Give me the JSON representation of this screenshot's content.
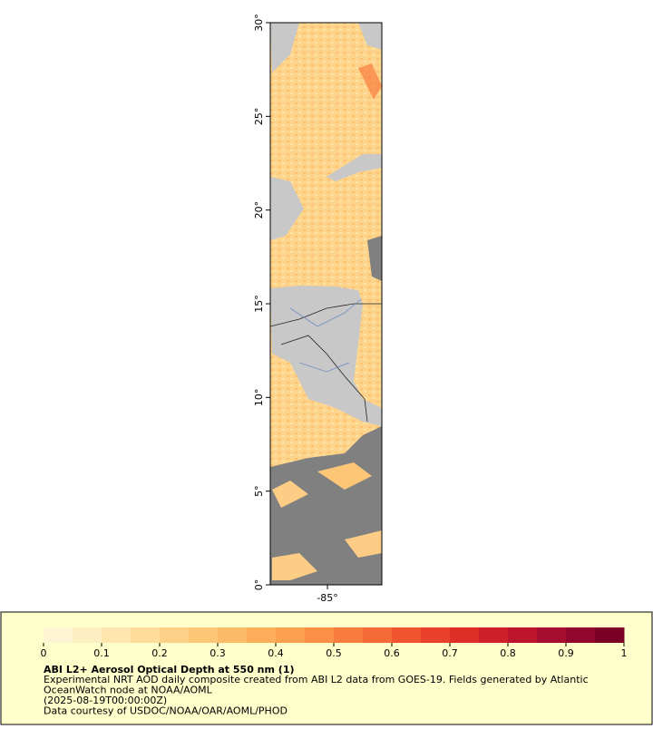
{
  "map": {
    "ylim": [
      0,
      30
    ],
    "xlim": [
      -88.05,
      -82.1
    ],
    "yticks": [
      {
        "value": 0,
        "label": "0°"
      },
      {
        "value": 5,
        "label": "5°"
      },
      {
        "value": 10,
        "label": "10°"
      },
      {
        "value": 15,
        "label": "15°"
      },
      {
        "value": 20,
        "label": "20°"
      },
      {
        "value": 25,
        "label": "25°"
      },
      {
        "value": 30,
        "label": "30°"
      }
    ],
    "xticks": [
      {
        "value": -85,
        "label": "-85°"
      }
    ]
  },
  "legend": {
    "range": [
      0,
      1
    ],
    "ticks": [
      0,
      0.1,
      0.2,
      0.3,
      0.4,
      0.5,
      0.6,
      0.7,
      0.8,
      0.9,
      1
    ],
    "palette": [
      "#fef5d4",
      "#feefc2",
      "#fee6ae",
      "#fedd9a",
      "#fdd088",
      "#fdc677",
      "#fcbb68",
      "#fcae5b",
      "#fca050",
      "#fb9046",
      "#f97d3e",
      "#f56a37",
      "#f05530",
      "#e9412b",
      "#de2e27",
      "#cf1f2a",
      "#bc152d",
      "#a70d2e",
      "#91062c",
      "#7b0026"
    ],
    "title": "ABI L2+ Aerosol Optical Depth at 550 nm (1)",
    "lines": [
      "Experimental NRT AOD daily composite created from ABI L2 data from GOES-19. Fields generated by Atlantic",
      "OceanWatch node at NOAA/AOML",
      "(2025-08-19T00:00:00Z)",
      "Data courtesy of USDOC/NOAA/OAR/AOML/PHOD"
    ]
  }
}
